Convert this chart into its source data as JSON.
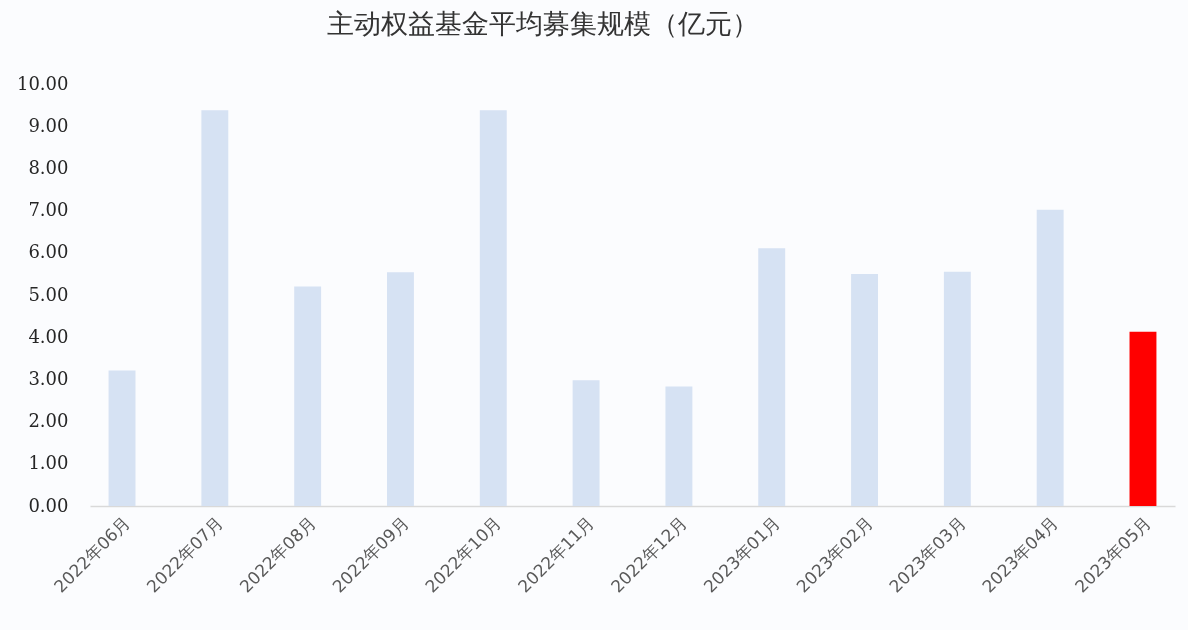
{
  "chart_data": {
    "type": "bar",
    "title": "主动权益基金平均募集规模（亿元）",
    "categories": [
      "2022年06月",
      "2022年07月",
      "2022年08月",
      "2022年09月",
      "2022年10月",
      "2022年11月",
      "2022年12月",
      "2023年01月",
      "2023年02月",
      "2023年03月",
      "2023年04月",
      "2023年05月"
    ],
    "values": [
      3.21,
      9.38,
      5.2,
      5.54,
      9.38,
      2.98,
      2.83,
      6.11,
      5.5,
      5.55,
      7.02,
      4.13
    ],
    "colors": [
      "#d6e2f3",
      "#d6e2f3",
      "#d6e2f3",
      "#d6e2f3",
      "#d6e2f3",
      "#d6e2f3",
      "#d6e2f3",
      "#d6e2f3",
      "#d6e2f3",
      "#d6e2f3",
      "#d6e2f3",
      "#ff0000"
    ],
    "ylim": [
      0,
      10
    ],
    "yticks": [
      {
        "value": 0,
        "label": "0.00"
      },
      {
        "value": 1,
        "label": "1.00"
      },
      {
        "value": 2,
        "label": "2.00"
      },
      {
        "value": 3,
        "label": "3.00"
      },
      {
        "value": 4,
        "label": "4.00"
      },
      {
        "value": 5,
        "label": "5.00"
      },
      {
        "value": 6,
        "label": "6.00"
      },
      {
        "value": 7,
        "label": "7.00"
      },
      {
        "value": 8,
        "label": "8.00"
      },
      {
        "value": 9,
        "label": "9.00"
      },
      {
        "value": 10,
        "label": "10.00"
      }
    ]
  }
}
